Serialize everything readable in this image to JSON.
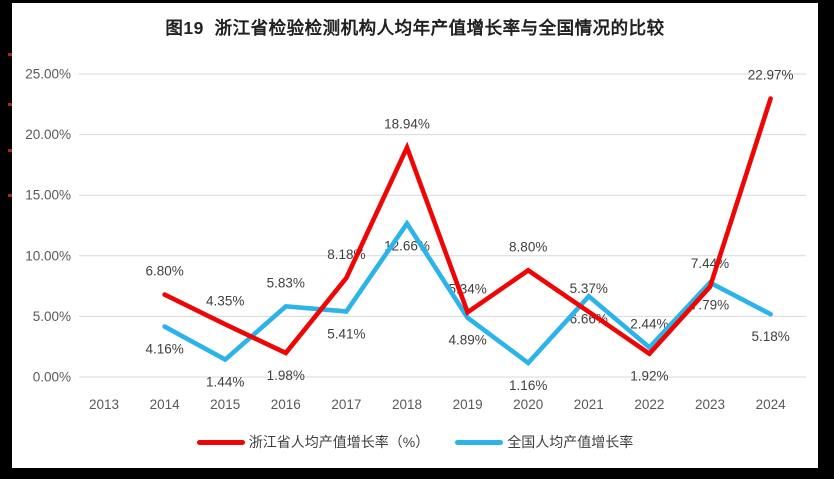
{
  "title": "图19  浙江省检验检测机构人均年产值增长率与全国情况的比较",
  "chart_data": {
    "type": "line",
    "title": "图19  浙江省检验检测机构人均年产值增长率与全国情况的比较",
    "categories": [
      "2013",
      "2014",
      "2015",
      "2016",
      "2017",
      "2018",
      "2019",
      "2020",
      "2021",
      "2022",
      "2023",
      "2024"
    ],
    "y_ticks": [
      "0.00%",
      "5.00%",
      "10.00%",
      "15.00%",
      "20.00%",
      "25.00%"
    ],
    "ylim": [
      0,
      25
    ],
    "xlabel": "",
    "ylabel": "",
    "grid": "horizontal",
    "legend_position": "bottom",
    "colors": {
      "gridline": "#d9d9d9",
      "axis_text": "#595959",
      "data_label_text": "#3f3f3f",
      "zhejiang_red": "#f00505",
      "national_blue": "#2bb3ea"
    },
    "series": [
      {
        "name": "浙江省人均产值增长率（%）",
        "color": "#f00505",
        "values": [
          null,
          6.8,
          4.35,
          1.98,
          8.18,
          18.94,
          5.34,
          8.8,
          5.37,
          1.92,
          7.44,
          22.97
        ],
        "labels": [
          "",
          "6.80%",
          "4.35%",
          "1.98%",
          "8.18%",
          "18.94%",
          "5.34%",
          "8.80%",
          "5.37%",
          "1.92%",
          "7.44%",
          "22.97%"
        ]
      },
      {
        "name": "全国人均产值增长率",
        "color": "#2bb3ea",
        "values": [
          null,
          4.16,
          1.44,
          5.83,
          5.41,
          12.66,
          4.89,
          1.16,
          6.66,
          2.44,
          7.79,
          5.18
        ],
        "labels": [
          "",
          "4.16%",
          "1.44%",
          "5.83%",
          "5.41%",
          "12.66%",
          "4.89%",
          "1.16%",
          "6.66%",
          "2.44%",
          "7.79%",
          "5.18%"
        ]
      }
    ]
  }
}
